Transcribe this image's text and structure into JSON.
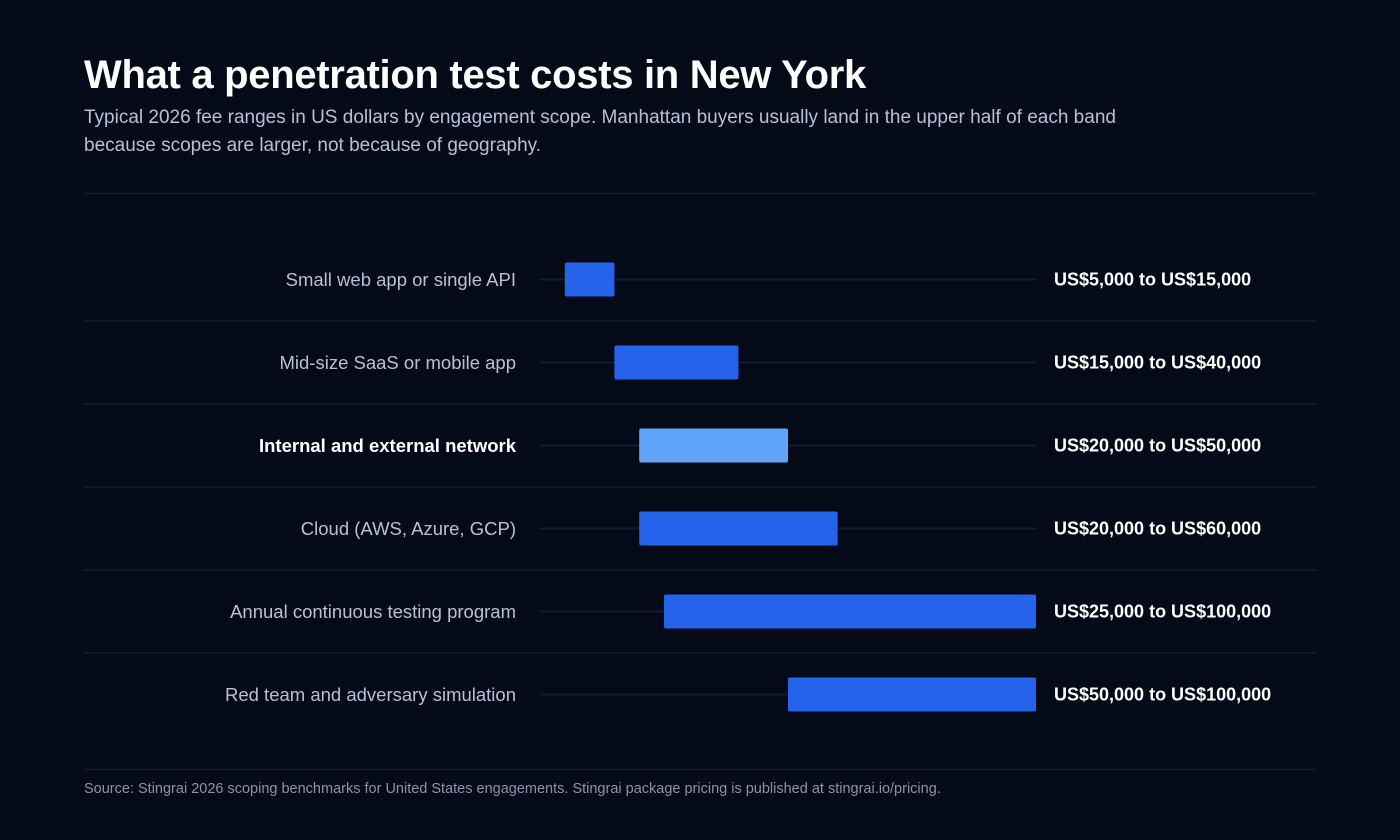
{
  "header": {
    "title": "What a penetration test costs in New York",
    "subtitle": "Typical 2026 fee ranges in US dollars by engagement scope. Manhattan buyers usually land in the upper half of each band because scopes are larger, not because of geography."
  },
  "footer": {
    "source": "Source: Stingrai 2026 scoping benchmarks for United States engagements. Stingrai package pricing is published at stingrai.io/pricing."
  },
  "chart_data": {
    "type": "bar",
    "orientation": "horizontal-range",
    "title": "What a penetration test costs in New York",
    "subtitle": "Typical 2026 fee ranges in US dollars by engagement scope. Manhattan buyers usually land in the upper half of each band because scopes are larger, not because of geography.",
    "xlim": [
      0,
      100000
    ],
    "grid": false,
    "legend": "none",
    "colors": {
      "bar": "#2563eb",
      "highlight": "#60a5fa",
      "track": "#141c33",
      "separator": "#121a2e",
      "label": "#b7c1d6",
      "label_highlight": "#ffffff",
      "value_label": "#ffffff"
    },
    "rows": [
      {
        "category": "Small web app or single API",
        "low": 5000,
        "high": 15000,
        "label": "US$5,000 to US$15,000",
        "highlight": false
      },
      {
        "category": "Mid-size SaaS or mobile app",
        "low": 15000,
        "high": 40000,
        "label": "US$15,000 to US$40,000",
        "highlight": false
      },
      {
        "category": "Internal and external network",
        "low": 20000,
        "high": 50000,
        "label": "US$20,000 to US$50,000",
        "highlight": true
      },
      {
        "category": "Cloud (AWS, Azure, GCP)",
        "low": 20000,
        "high": 60000,
        "label": "US$20,000 to US$60,000",
        "highlight": false
      },
      {
        "category": "Annual continuous testing program",
        "low": 25000,
        "high": 100000,
        "label": "US$25,000 to US$100,000",
        "highlight": false
      },
      {
        "category": "Red team and adversary simulation",
        "low": 50000,
        "high": 100000,
        "label": "US$50,000 to US$100,000",
        "highlight": false
      }
    ]
  }
}
